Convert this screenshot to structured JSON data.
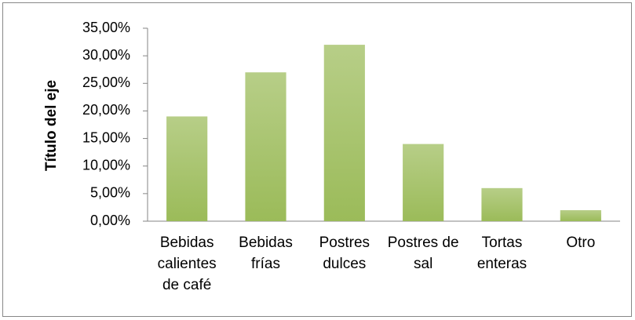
{
  "chart_data": {
    "type": "bar",
    "y_label": "Título del eje",
    "categories": [
      "Bebidas calientes de café",
      "Bebidas frías",
      "Postres dulces",
      "Postres de sal",
      "Tortas enteras",
      "Otro"
    ],
    "values": [
      19,
      27,
      32,
      14,
      6,
      2
    ],
    "color": "#9bbb59",
    "ylim": [
      0,
      35
    ],
    "yticks": [
      {
        "value": 0,
        "label": "0,00%"
      },
      {
        "value": 5,
        "label": "5,00%"
      },
      {
        "value": 10,
        "label": "10,00%"
      },
      {
        "value": 15,
        "label": "15,00%"
      },
      {
        "value": 20,
        "label": "20,00%"
      },
      {
        "value": 25,
        "label": "25,00%"
      },
      {
        "value": 30,
        "label": "30,00%"
      },
      {
        "value": 35,
        "label": "35,00%"
      }
    ],
    "grid": false
  }
}
